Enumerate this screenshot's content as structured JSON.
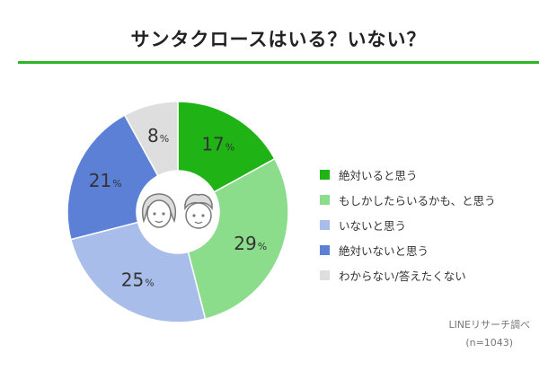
{
  "title": "サンタクロースはいる？いない？",
  "chart_data": {
    "type": "pie",
    "categories": [
      "絶対いると思う",
      "もしかしたらいるかも、と思う",
      "いないと思う",
      "絶対いないと思う",
      "わからない/答えたくない"
    ],
    "values": [
      17,
      29,
      25,
      21,
      8
    ],
    "unit": "%",
    "colors": [
      "#1fb316",
      "#8bdd8b",
      "#a9bdea",
      "#5c80d6",
      "#dedede"
    ],
    "legend_position": "right"
  },
  "source": {
    "line1": "LINEリサーチ調べ",
    "line2": "(n=1043)"
  }
}
